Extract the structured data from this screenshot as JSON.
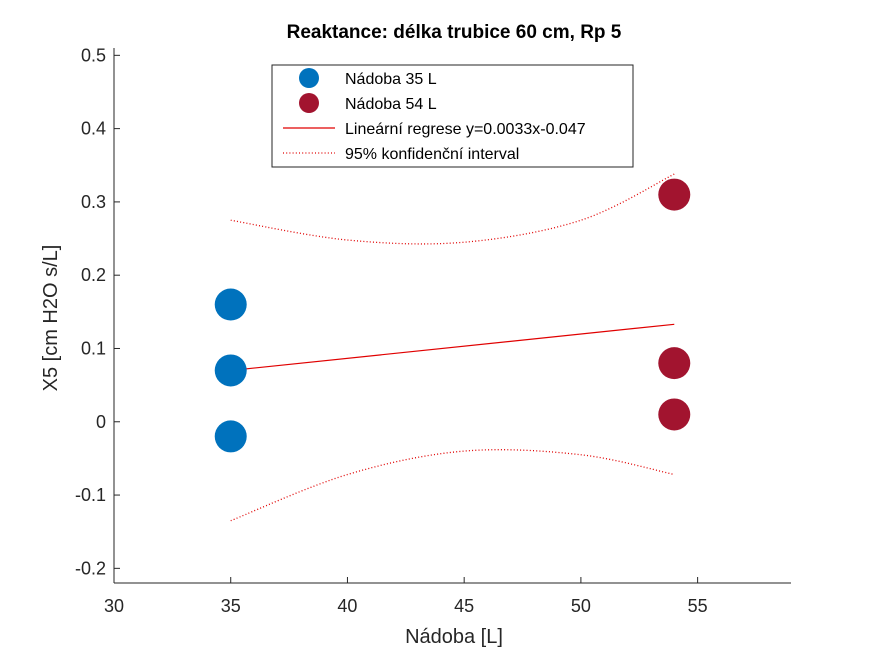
{
  "chart_data": {
    "type": "scatter",
    "title": "Reaktance: délka trubice 60 cm, Rp 5",
    "xlabel": "Nádoba [L]",
    "ylabel": "X5 [cm H2O s/L]",
    "xlim": [
      30,
      59
    ],
    "ylim": [
      -0.22,
      0.51
    ],
    "xticks": [
      "30",
      "35",
      "40",
      "45",
      "50",
      "55"
    ],
    "yticks": [
      "-0.2",
      "-0.1",
      "0",
      "0.1",
      "0.2",
      "0.3",
      "0.4",
      "0.5"
    ],
    "grid": false,
    "legend_position": "top-center",
    "series": [
      {
        "name": "Nádoba 35 L",
        "kind": "points",
        "color": "#0072BD",
        "points": [
          [
            35,
            0.16
          ],
          [
            35,
            0.07
          ],
          [
            35,
            -0.02
          ]
        ]
      },
      {
        "name": "Nádoba 54 L",
        "kind": "points",
        "color": "#A2142F",
        "points": [
          [
            54,
            0.31
          ],
          [
            54,
            0.08
          ],
          [
            54,
            0.01
          ]
        ]
      },
      {
        "name": "Lineární regrese y=0.0033x-0.047",
        "kind": "line",
        "style": "solid",
        "color": "#E00000",
        "points": [
          [
            35,
            0.07
          ],
          [
            54,
            0.133
          ]
        ]
      },
      {
        "name": "95% konfidenční interval",
        "kind": "band",
        "style": "dotted",
        "color": "#E00000",
        "upper": [
          [
            35,
            0.275
          ],
          [
            40,
            0.248
          ],
          [
            45,
            0.245
          ],
          [
            50,
            0.275
          ],
          [
            54,
            0.338
          ]
        ],
        "lower": [
          [
            35,
            -0.135
          ],
          [
            40,
            -0.072
          ],
          [
            45,
            -0.04
          ],
          [
            50,
            -0.045
          ],
          [
            54,
            -0.072
          ]
        ]
      }
    ]
  }
}
